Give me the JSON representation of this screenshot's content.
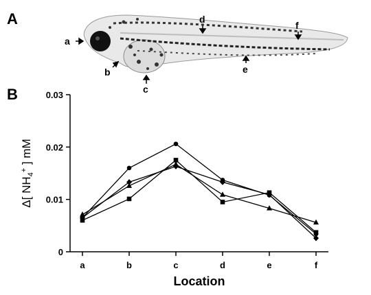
{
  "panels": {
    "a": "A",
    "b": "B"
  },
  "fish_locations": [
    "a",
    "b",
    "c",
    "d",
    "e",
    "f"
  ],
  "chart_data": {
    "type": "line",
    "title": "",
    "xlabel": "Location",
    "ylabel": {
      "prefix": "Δ[ NH",
      "subscript": "4",
      "superscript": "+",
      "suffix": " ] mM"
    },
    "categories": [
      "a",
      "b",
      "c",
      "d",
      "e",
      "f"
    ],
    "ylim": [
      0,
      0.03
    ],
    "yticks": [
      "0",
      "0.01",
      "0.02",
      "0.03"
    ],
    "ytick_values": [
      0,
      0.01,
      0.02,
      0.03
    ],
    "grid": false,
    "legend": "none",
    "series": [
      {
        "marker": "circle",
        "values": [
          0.0065,
          0.016,
          0.0206,
          0.0137,
          0.0108,
          0.0034
        ]
      },
      {
        "marker": "square",
        "values": [
          0.006,
          0.0101,
          0.0175,
          0.0095,
          0.0113,
          0.0037
        ]
      },
      {
        "marker": "triangle",
        "values": [
          0.0071,
          0.0126,
          0.0167,
          0.0109,
          0.0083,
          0.0056
        ]
      },
      {
        "marker": "diamond",
        "values": [
          0.0065,
          0.0133,
          0.0163,
          0.0133,
          0.0109,
          0.0026
        ]
      }
    ]
  }
}
